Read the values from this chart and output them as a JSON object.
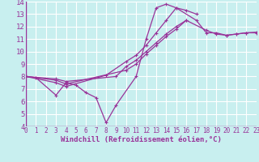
{
  "xlabel": "Windchill (Refroidissement éolien,°C)",
  "xlim": [
    0,
    23
  ],
  "ylim": [
    4,
    14
  ],
  "yticks": [
    4,
    5,
    6,
    7,
    8,
    9,
    10,
    11,
    12,
    13,
    14
  ],
  "xticks": [
    0,
    1,
    2,
    3,
    4,
    5,
    6,
    7,
    8,
    9,
    10,
    11,
    12,
    13,
    14,
    15,
    16,
    17,
    18,
    19,
    20,
    21,
    22,
    23
  ],
  "bg_color": "#c8efef",
  "grid_color": "#ffffff",
  "line_color": "#993399",
  "lines": [
    {
      "x": [
        0,
        1,
        3,
        4,
        5,
        6,
        7,
        8,
        9,
        11,
        12,
        13,
        14,
        15,
        16,
        17
      ],
      "y": [
        8.0,
        7.9,
        6.5,
        7.5,
        7.3,
        6.7,
        6.3,
        4.3,
        5.7,
        8.0,
        11.0,
        13.5,
        13.8,
        13.5,
        13.3,
        13.0
      ]
    },
    {
      "x": [
        0,
        3,
        4,
        8,
        10,
        11,
        12,
        13,
        14,
        15,
        17,
        18,
        19,
        20,
        21,
        22,
        23
      ],
      "y": [
        8.0,
        7.5,
        7.2,
        8.1,
        9.2,
        9.7,
        10.5,
        11.5,
        12.5,
        13.5,
        12.5,
        11.5,
        11.5,
        11.3,
        11.4,
        11.5,
        11.5
      ]
    },
    {
      "x": [
        0,
        3,
        4,
        10,
        11,
        12,
        13,
        14,
        15,
        16
      ],
      "y": [
        8.0,
        7.7,
        7.4,
        8.5,
        9.0,
        9.8,
        10.5,
        11.2,
        11.8,
        12.5
      ]
    },
    {
      "x": [
        0,
        3,
        4,
        9,
        10,
        11,
        12,
        13,
        14,
        15,
        16,
        18,
        19,
        20,
        21,
        22,
        23
      ],
      "y": [
        8.0,
        7.8,
        7.6,
        8.0,
        8.8,
        9.3,
        10.0,
        10.7,
        11.4,
        12.0,
        12.5,
        11.7,
        11.4,
        11.3,
        11.4,
        11.5,
        11.55
      ]
    }
  ],
  "font_size_xlabel": 6.5,
  "font_size_ytick": 6.5,
  "font_size_xtick": 5.5
}
